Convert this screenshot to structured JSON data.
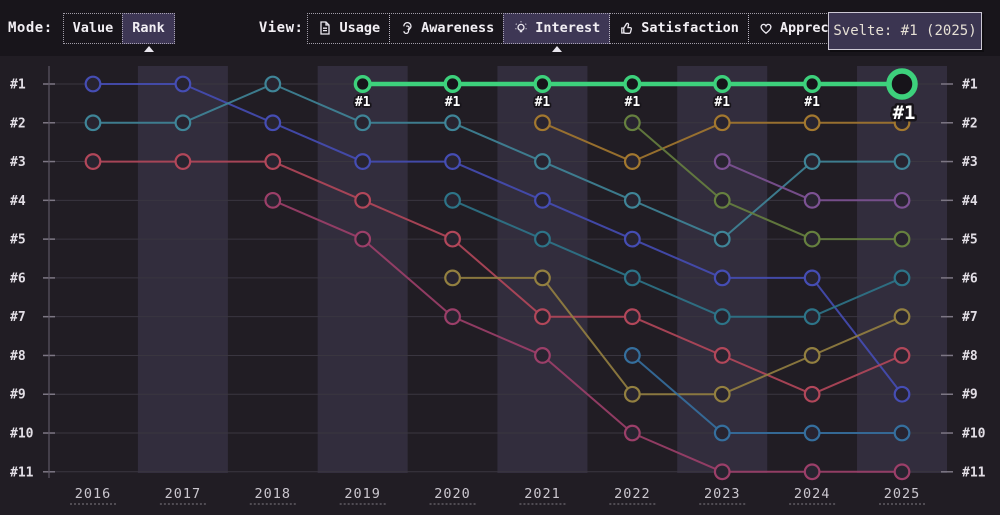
{
  "toolbar": {
    "mode": {
      "label": "Mode:",
      "buttons": [
        {
          "label": "Value",
          "selected": false
        },
        {
          "label": "Rank",
          "selected": true
        }
      ]
    },
    "view": {
      "label": "View:",
      "buttons": [
        {
          "label": "Usage",
          "icon": "document-icon",
          "selected": false
        },
        {
          "label": "Awareness",
          "icon": "ear-icon",
          "selected": false
        },
        {
          "label": "Interest",
          "icon": "lightbulb-icon",
          "selected": true
        },
        {
          "label": "Satisfaction",
          "icon": "thumbs-up-icon",
          "selected": false
        },
        {
          "label": "Appreciation",
          "icon": "heart-icon",
          "selected": false
        }
      ]
    }
  },
  "tooltip": {
    "text": "Svelte: #1 (2025)"
  },
  "chart_data": {
    "type": "line",
    "subtype": "rank-bump",
    "x": [
      2016,
      2017,
      2018,
      2019,
      2020,
      2021,
      2022,
      2023,
      2024,
      2025
    ],
    "x_labels": [
      "2016",
      "2017",
      "2018",
      "2019",
      "2020",
      "2021",
      "2022",
      "2023",
      "2024",
      "2025"
    ],
    "rank_labels": [
      "#1",
      "#2",
      "#3",
      "#4",
      "#5",
      "#6",
      "#7",
      "#8",
      "#9",
      "#10",
      "#11"
    ],
    "ylim": [
      1,
      11
    ],
    "grid": true,
    "banded_year_indexes": [
      1,
      3,
      5,
      7,
      9
    ],
    "highlighted_series": "Svelte",
    "series": [
      {
        "id": "blue-series",
        "color": "#454db4",
        "ranks": [
          1,
          1,
          2,
          3,
          3,
          4,
          5,
          6,
          6,
          9
        ],
        "highlight": false
      },
      {
        "id": "teal-series",
        "color": "#3f8598",
        "ranks": [
          2,
          2,
          1,
          2,
          2,
          3,
          4,
          5,
          3,
          3
        ],
        "highlight": false
      },
      {
        "id": "red-series",
        "color": "#b2475a",
        "ranks": [
          3,
          3,
          3,
          4,
          5,
          7,
          7,
          8,
          9,
          8
        ],
        "highlight": false
      },
      {
        "id": "magenta-series",
        "color": "#9c3f69",
        "ranks": [
          null,
          null,
          4,
          5,
          7,
          8,
          10,
          11,
          11,
          11
        ],
        "highlight": false
      },
      {
        "id": "cyan-series",
        "color": "#2d7488",
        "ranks": [
          null,
          null,
          null,
          null,
          4,
          5,
          6,
          7,
          7,
          6
        ],
        "highlight": false
      },
      {
        "id": "olive-series",
        "color": "#938040",
        "ranks": [
          null,
          null,
          null,
          null,
          6,
          6,
          9,
          9,
          8,
          7
        ],
        "highlight": false
      },
      {
        "id": "gold-series",
        "color": "#a3782f",
        "ranks": [
          null,
          null,
          null,
          null,
          null,
          2,
          3,
          2,
          2,
          2
        ],
        "highlight": false
      },
      {
        "id": "lime-series",
        "color": "#66803f",
        "ranks": [
          null,
          null,
          null,
          null,
          null,
          null,
          2,
          4,
          5,
          5
        ],
        "highlight": false
      },
      {
        "id": "steel-series",
        "color": "#356f9e",
        "ranks": [
          null,
          null,
          null,
          null,
          null,
          null,
          8,
          10,
          10,
          10
        ],
        "highlight": false
      },
      {
        "id": "violet-series",
        "color": "#7d5294",
        "ranks": [
          null,
          null,
          null,
          null,
          null,
          null,
          null,
          3,
          4,
          4
        ],
        "highlight": false
      },
      {
        "id": "svelte-series",
        "name": "Svelte",
        "color": "#3dd17c",
        "ranks": [
          null,
          null,
          null,
          1,
          1,
          1,
          1,
          1,
          1,
          1
        ],
        "highlight": true
      }
    ],
    "point_labels": {
      "series": "Svelte",
      "label": "#1",
      "years": [
        2019,
        2020,
        2021,
        2022,
        2023,
        2024,
        2025
      ],
      "emphasized_year": 2025
    }
  },
  "theme": {
    "page_bg": "#211d24",
    "toolbar_bg": "#18151b",
    "band_color": "#322d3d",
    "grid_color": "#3a3640",
    "axis_color": "#5c5663",
    "tick_color": "#7d7784",
    "rank_label_color": "#e2dee5",
    "year_label_color": "#cbc7cf",
    "selected_button_bg": "#3e3755",
    "highlight_green": "#3dd17c"
  }
}
